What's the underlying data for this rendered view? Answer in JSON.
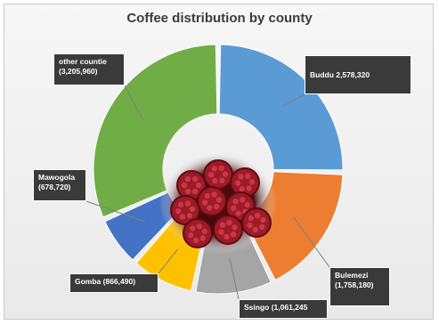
{
  "chart_data": {
    "type": "pie",
    "title": "Coffee distribution by county",
    "slices": [
      {
        "label": "Buddu",
        "value": 2578320,
        "display": "Buddu 2,578,320",
        "color": "#5b9bd5"
      },
      {
        "label": "Bulemezi",
        "value": 1758180,
        "display": "Bulemezi\n(1,758,180)",
        "color": "#ed7d31"
      },
      {
        "label": "Ssingo",
        "value": 1061245,
        "display": "Ssingo (1,061,245",
        "color": "#a5a5a5"
      },
      {
        "label": "Gomba",
        "value": 866490,
        "display": "Gomba (866,490)",
        "color": "#ffc000"
      },
      {
        "label": "Mawogola",
        "value": 678720,
        "display": "Mawogola\n(678,720)",
        "color": "#4472c4"
      },
      {
        "label": "other countie",
        "value": 3205960,
        "display": "other countie\n(3,205,960)",
        "color": "#70ad47"
      }
    ],
    "legend": "none"
  }
}
